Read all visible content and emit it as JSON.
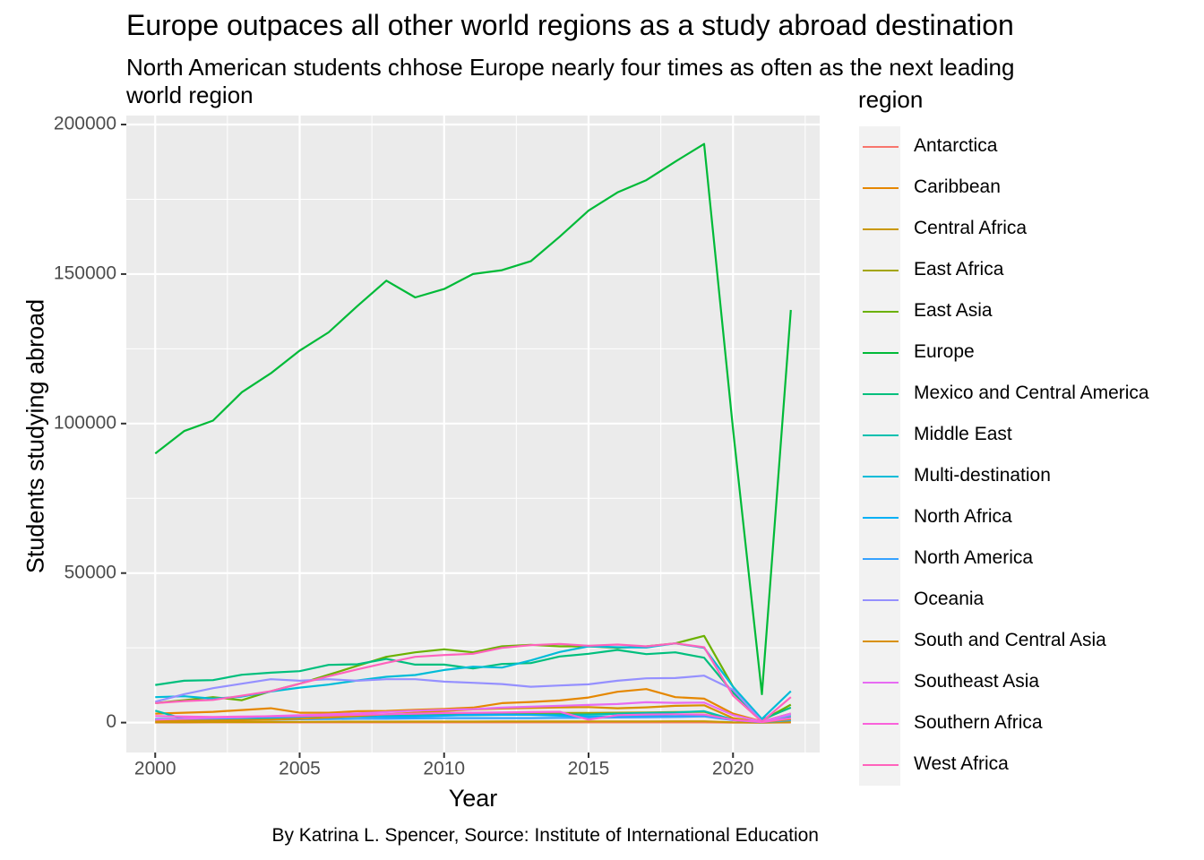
{
  "chart_data": {
    "type": "line",
    "title": "Europe outpaces all other world regions as a study abroad destination",
    "subtitle": "North American students chhose Europe nearly four times as often as the next leading world region",
    "caption": "By Katrina L. Spencer, Source: Institute of International Education",
    "xlabel": "Year",
    "ylabel": "Students studying abroad",
    "legend_title": "region",
    "legend_position": "right",
    "xlim": [
      1999,
      2023
    ],
    "ylim": [
      -10000,
      203000
    ],
    "x_ticks": [
      2000,
      2005,
      2010,
      2015,
      2020
    ],
    "y_ticks": [
      0,
      50000,
      100000,
      150000,
      200000
    ],
    "grid": true,
    "x": [
      2000,
      2001,
      2002,
      2003,
      2004,
      2005,
      2006,
      2007,
      2008,
      2009,
      2010,
      2011,
      2012,
      2013,
      2014,
      2015,
      2016,
      2017,
      2018,
      2019,
      2020,
      2021,
      2022
    ],
    "series": [
      {
        "name": "Antarctica",
        "color": "#F8766D",
        "values": [
          50,
          50,
          60,
          60,
          70,
          70,
          80,
          80,
          80,
          80,
          80,
          80,
          80,
          80,
          80,
          80,
          80,
          80,
          80,
          80,
          20,
          0,
          50
        ]
      },
      {
        "name": "Caribbean",
        "color": "#E58700",
        "values": [
          3000,
          3300,
          3600,
          4200,
          4800,
          3300,
          3300,
          3800,
          3900,
          4300,
          4600,
          5000,
          6500,
          6900,
          7400,
          8400,
          10300,
          11200,
          8500,
          8000,
          3000,
          400,
          3000
        ]
      },
      {
        "name": "Central Africa",
        "color": "#C99800",
        "values": [
          150,
          160,
          180,
          200,
          230,
          250,
          280,
          300,
          320,
          330,
          340,
          350,
          360,
          370,
          380,
          390,
          400,
          410,
          420,
          430,
          100,
          10,
          200
        ]
      },
      {
        "name": "East Africa",
        "color": "#A3A500",
        "values": [
          1200,
          1300,
          1500,
          1700,
          1900,
          2100,
          2300,
          2500,
          2700,
          2800,
          2900,
          3000,
          3100,
          3200,
          3200,
          3200,
          3300,
          3400,
          3500,
          3600,
          900,
          100,
          2500
        ]
      },
      {
        "name": "East Asia",
        "color": "#6BB100",
        "values": [
          6500,
          7500,
          8500,
          7500,
          10500,
          13000,
          16000,
          19000,
          22000,
          23500,
          24500,
          23500,
          25500,
          26000,
          25500,
          25500,
          25000,
          25500,
          26500,
          29000,
          12000,
          700,
          6000
        ]
      },
      {
        "name": "Europe",
        "color": "#00BA38",
        "values": [
          90000,
          97500,
          101000,
          110500,
          116800,
          124400,
          130500,
          139300,
          147800,
          142200,
          145000,
          150000,
          151300,
          154300,
          162500,
          171200,
          177300,
          181400,
          187600,
          193500,
          98000,
          9500,
          138000
        ]
      },
      {
        "name": "Mexico and Central America",
        "color": "#00BF7D",
        "values": [
          12600,
          14000,
          14200,
          16000,
          16700,
          17200,
          19300,
          19500,
          21300,
          19400,
          19400,
          18100,
          19600,
          19900,
          22100,
          23000,
          24300,
          22900,
          23500,
          21700,
          10000,
          1000,
          5000
        ]
      },
      {
        "name": "Middle East",
        "color": "#00C0AF",
        "values": [
          4000,
          1200,
          1100,
          1100,
          1300,
          1500,
          1800,
          2000,
          2200,
          2300,
          2500,
          2500,
          2600,
          2600,
          2700,
          2700,
          3000,
          3200,
          3400,
          3800,
          1000,
          100,
          2000
        ]
      },
      {
        "name": "Multi-destination",
        "color": "#00BCD8",
        "values": [
          8500,
          8800,
          8000,
          8700,
          10400,
          11700,
          12700,
          14100,
          15300,
          15900,
          17600,
          18700,
          18400,
          20800,
          23600,
          25500,
          25200,
          25100,
          26500,
          25000,
          12000,
          1200,
          10500
        ]
      },
      {
        "name": "North Africa",
        "color": "#00B0F6",
        "values": [
          1200,
          1300,
          1500,
          1700,
          1800,
          1900,
          2000,
          2000,
          1900,
          2000,
          2300,
          2600,
          2600,
          2600,
          2300,
          2000,
          2100,
          2100,
          2100,
          2400,
          900,
          100,
          800
        ]
      },
      {
        "name": "North America",
        "color": "#35A2FF",
        "values": [
          700,
          750,
          800,
          900,
          1000,
          1100,
          1200,
          1300,
          1300,
          1400,
          1500,
          1500,
          1500,
          1500,
          1600,
          1600,
          1700,
          1800,
          1900,
          2100,
          800,
          300,
          900
        ]
      },
      {
        "name": "Oceania",
        "color": "#9590FF",
        "values": [
          7000,
          9500,
          11500,
          13000,
          14500,
          14000,
          14500,
          14000,
          14500,
          14500,
          13700,
          13300,
          12900,
          12000,
          12400,
          12800,
          14000,
          14800,
          14900,
          15700,
          11000,
          400,
          2500
        ]
      },
      {
        "name": "South and Central Asia",
        "color": "#D89000",
        "values": [
          500,
          600,
          700,
          800,
          1000,
          1300,
          1700,
          2200,
          2800,
          3300,
          3900,
          4400,
          4700,
          4900,
          5100,
          5200,
          4800,
          5100,
          5600,
          5800,
          1500,
          100,
          1200
        ]
      },
      {
        "name": "Southeast Asia",
        "color": "#E76BF3",
        "values": [
          1000,
          1300,
          1600,
          1800,
          2200,
          2500,
          2800,
          3100,
          3500,
          4000,
          4300,
          4500,
          5000,
          5300,
          5600,
          5900,
          6200,
          6800,
          6600,
          6700,
          2500,
          300,
          3000
        ]
      },
      {
        "name": "Southern Africa",
        "color": "#FA62DB",
        "values": [
          2200,
          2000,
          1900,
          2000,
          2100,
          2200,
          2400,
          2600,
          2800,
          3000,
          3200,
          3300,
          3400,
          3500,
          3600,
          1000,
          2500,
          2700,
          2800,
          2700,
          900,
          200,
          1500
        ]
      },
      {
        "name": "West Africa",
        "color": "#FF62BC",
        "values": [
          6500,
          7200,
          7600,
          9000,
          10500,
          13000,
          15500,
          17800,
          20000,
          22000,
          22600,
          23000,
          25000,
          25900,
          26300,
          25700,
          26100,
          25500,
          26500,
          25200,
          9000,
          300,
          8500
        ]
      }
    ]
  }
}
